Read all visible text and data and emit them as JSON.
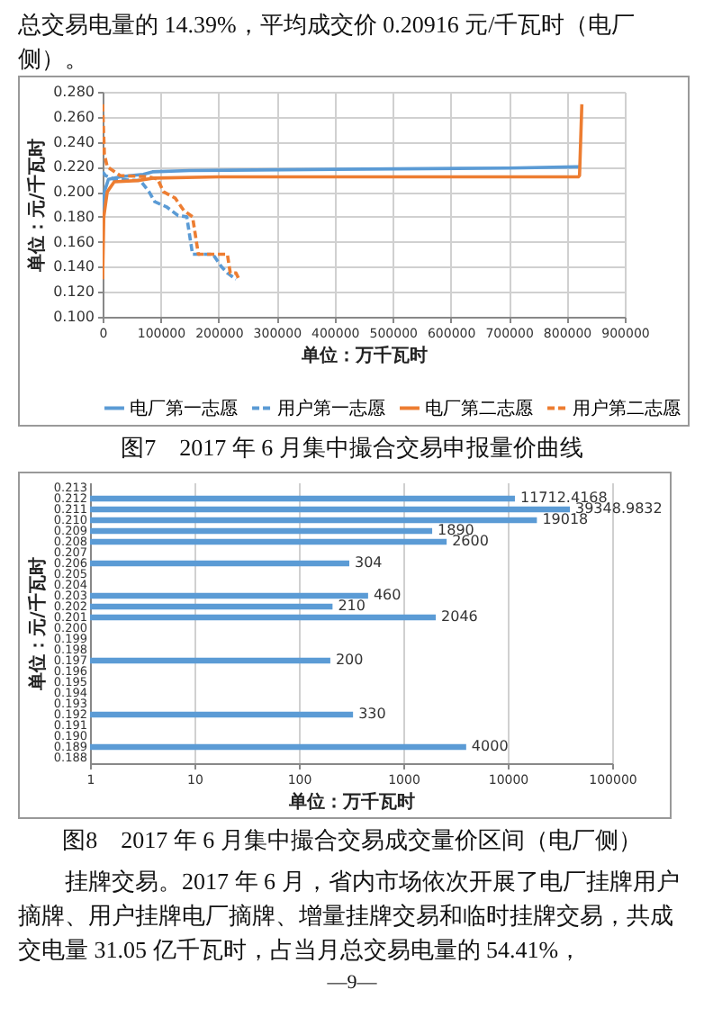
{
  "chart_data": [
    {
      "type": "line",
      "title": "图7　2017 年 6 月集中撮合交易申报量价曲线",
      "annotations": [
        "总交易电量的 14.39%，平均成交价 0.20916 元/千瓦时（电厂侧）。"
      ],
      "xlabel": "单位：万千瓦时",
      "ylabel": "单位：元/千瓦时",
      "xlim": [
        0,
        900000
      ],
      "xticks": [
        0,
        100000,
        200000,
        300000,
        400000,
        500000,
        600000,
        700000,
        800000,
        900000
      ],
      "ylim": [
        0.1,
        0.28
      ],
      "yticks": [
        {
          "value": 0.1,
          "label": "0.100"
        },
        {
          "value": 0.12,
          "label": "0.120"
        },
        {
          "value": 0.14,
          "label": "0.140"
        },
        {
          "value": 0.16,
          "label": "0.160"
        },
        {
          "value": 0.18,
          "label": "0.180"
        },
        {
          "value": 0.2,
          "label": "0.200"
        },
        {
          "value": 0.22,
          "label": "0.220"
        },
        {
          "value": 0.24,
          "label": "0.240"
        },
        {
          "value": 0.26,
          "label": "0.260"
        },
        {
          "value": 0.28,
          "label": "0.280"
        }
      ],
      "grid": true,
      "legend": "bottom",
      "series": [
        {
          "name": "电厂第一志愿",
          "color": "#5b9bd5",
          "line_style": "solid",
          "x": [
            0,
            3000,
            10000,
            30000,
            50000,
            70000,
            86000,
            150000,
            400000,
            700000,
            815000,
            823000
          ],
          "values": [
            0.18,
            0.2,
            0.21,
            0.212,
            0.213,
            0.214,
            0.216,
            0.217,
            0.218,
            0.219,
            0.22,
            0.22
          ]
        },
        {
          "name": "用户第一志愿",
          "color": "#5b9bd5",
          "line_style": "dashed",
          "x": [
            0,
            5000,
            20000,
            65000,
            80000,
            90000,
            110000,
            130000,
            145000,
            155000,
            190000,
            205000,
            215000,
            230000
          ],
          "values": [
            0.216,
            0.213,
            0.21,
            0.209,
            0.2,
            0.192,
            0.188,
            0.181,
            0.18,
            0.15,
            0.15,
            0.14,
            0.135,
            0.13
          ]
        },
        {
          "name": "电厂第二志愿",
          "color": "#ed7d31",
          "line_style": "solid",
          "x": [
            0,
            2000,
            8000,
            20000,
            60000,
            90000,
            200000,
            820000,
            822000,
            826000
          ],
          "values": [
            0.13,
            0.18,
            0.2,
            0.208,
            0.209,
            0.211,
            0.212,
            0.212,
            0.213,
            0.27
          ]
        },
        {
          "name": "用户第二志愿",
          "color": "#ed7d31",
          "line_style": "dashed",
          "x": [
            0,
            3000,
            8000,
            30000,
            80000,
            95000,
            105000,
            125000,
            140000,
            155000,
            165000,
            215000,
            220000,
            230000,
            235000
          ],
          "values": [
            0.27,
            0.23,
            0.22,
            0.213,
            0.212,
            0.21,
            0.2,
            0.195,
            0.185,
            0.18,
            0.15,
            0.15,
            0.135,
            0.135,
            0.13
          ]
        }
      ]
    },
    {
      "type": "bar",
      "orientation": "horizontal",
      "log": "x",
      "title": "图8　2017 年 6 月集中撮合交易成交量价区间（电厂侧）",
      "annotations": [
        "挂牌交易。2017 年 6 月，省内市场依次开展了电厂挂牌用户摘牌、用户挂牌电厂摘牌、增量挂牌交易和临时挂牌交易，共成交电量 31.05 亿千瓦时，占当月总交易电量的 54.41%，",
        "—9—"
      ],
      "xlabel": "单位：万千瓦时",
      "ylabel": "单位：元/千瓦时",
      "xlim": [
        1,
        100000
      ],
      "xticks": [
        1,
        10,
        100,
        1000,
        10000,
        100000
      ],
      "grid": "x",
      "data_labels": true,
      "categories": [
        "0.213",
        "0.212",
        "0.211",
        "0.210",
        "0.209",
        "0.208",
        "0.207",
        "0.206",
        "0.205",
        "0.204",
        "0.203",
        "0.202",
        "0.201",
        "0.200",
        "0.199",
        "0.198",
        "0.197",
        "0.196",
        "0.195",
        "0.194",
        "0.193",
        "0.192",
        "0.191",
        "0.190",
        "0.189",
        "0.188"
      ],
      "color": "#5b9bd5",
      "values": [
        null,
        11712.4168,
        39348.9832,
        19018,
        1890,
        2600,
        null,
        304,
        null,
        null,
        460,
        210,
        2046,
        null,
        null,
        null,
        200,
        null,
        null,
        null,
        null,
        330,
        null,
        null,
        4000,
        null
      ]
    }
  ]
}
